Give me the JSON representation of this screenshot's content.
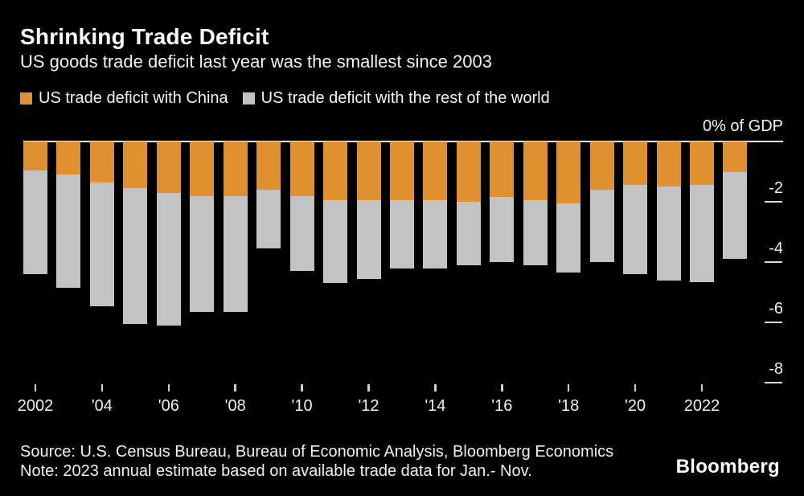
{
  "header": {
    "title": "Shrinking Trade Deficit",
    "subtitle": "US goods trade deficit last year was the smallest since 2003"
  },
  "legend": {
    "china_label": "US trade deficit with China",
    "rest_label": "US trade deficit with the rest of the world"
  },
  "colors": {
    "background": "#000000",
    "china": "#E0912F",
    "rest_of_world": "#C3C3C3",
    "axis_text": "#F0F0F0",
    "zero_line": "#EFEFEF"
  },
  "chart_data": {
    "type": "bar",
    "stacked": true,
    "title": "Shrinking Trade Deficit",
    "subtitle": "US goods trade deficit last year was the smallest since 2003",
    "unit": "percent of GDP",
    "ylim": [
      -8,
      0
    ],
    "grid": false,
    "legend_position": "top",
    "categories": [
      "2002",
      "2003",
      "2004",
      "2005",
      "2006",
      "2007",
      "2008",
      "2009",
      "2010",
      "2011",
      "2012",
      "2013",
      "2014",
      "2015",
      "2016",
      "2017",
      "2018",
      "2019",
      "2020",
      "2021",
      "2022",
      "2023"
    ],
    "series": [
      {
        "name": "US trade deficit with China",
        "color": "#E0912F",
        "values": [
          -0.95,
          -1.1,
          -1.35,
          -1.55,
          -1.7,
          -1.8,
          -1.8,
          -1.6,
          -1.8,
          -1.95,
          -1.95,
          -1.95,
          -1.95,
          -2.0,
          -1.85,
          -1.95,
          -2.05,
          -1.6,
          -1.45,
          -1.5,
          -1.45,
          -1.0
        ]
      },
      {
        "name": "US trade deficit with the rest of the world",
        "color": "#C3C3C3",
        "values": [
          -3.45,
          -3.75,
          -4.1,
          -4.5,
          -4.4,
          -3.85,
          -3.85,
          -1.95,
          -2.5,
          -2.75,
          -2.6,
          -2.25,
          -2.25,
          -2.1,
          -2.15,
          -2.15,
          -2.3,
          -2.4,
          -2.95,
          -3.1,
          -3.2,
          -2.9
        ]
      }
    ],
    "y_axis": {
      "top_label": "0% of GDP",
      "tick_values": [
        -2,
        -4,
        -6,
        -8
      ],
      "tick_labels": [
        "-2",
        "-4",
        "-6",
        "-8"
      ]
    },
    "x_axis": {
      "ticks": [
        {
          "index": 0,
          "label": "2002"
        },
        {
          "index": 2,
          "label": "'04"
        },
        {
          "index": 4,
          "label": "'06"
        },
        {
          "index": 6,
          "label": "'08"
        },
        {
          "index": 8,
          "label": "'10"
        },
        {
          "index": 10,
          "label": "'12"
        },
        {
          "index": 12,
          "label": "'14"
        },
        {
          "index": 14,
          "label": "'16"
        },
        {
          "index": 16,
          "label": "'18"
        },
        {
          "index": 18,
          "label": "'20"
        },
        {
          "index": 20,
          "label": "2022"
        }
      ]
    }
  },
  "footer": {
    "source": "Source: U.S. Census Bureau, Bureau of Economic Analysis, Bloomberg Economics",
    "note": "Note: 2023 annual estimate based on available trade data for Jan.- Nov.",
    "logo": "Bloomberg"
  }
}
